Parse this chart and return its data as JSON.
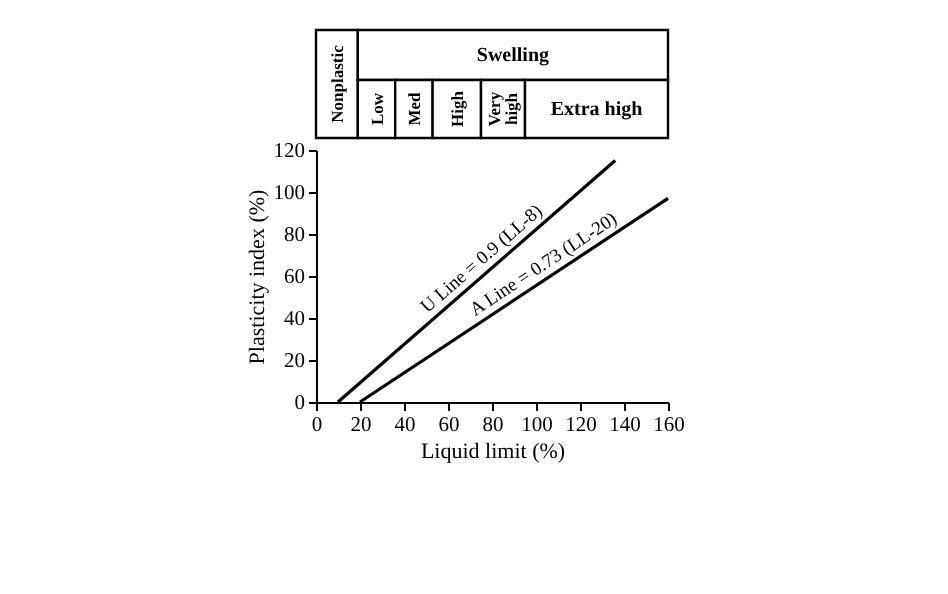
{
  "chart_data": {
    "type": "line",
    "xlabel": "Liquid limit (%)",
    "ylabel": "Plasticity index (%)",
    "series": [
      {
        "color": "#000000",
        "x": [
          10,
          136
        ],
        "values": [
          0,
          115
        ]
      },
      {
        "color": "#000000",
        "x": [
          20,
          160
        ],
        "values": [
          0,
          97
        ]
      }
    ],
    "xlim": [
      0,
      160
    ],
    "xticks": [
      0,
      20,
      40,
      60,
      80,
      100,
      120,
      140,
      160
    ],
    "ylim": [
      0,
      120
    ],
    "yticks": [
      0,
      20,
      40,
      60,
      80,
      100,
      120
    ],
    "grid": false,
    "marker": "none",
    "line_style": "solid",
    "annotations": [
      "Nonplastic",
      "Swelling",
      "Low",
      "Med",
      "High",
      "Very high",
      "Extra high",
      "U Line = 0.9 (LL-8)",
      "A Line = 0.73 (LL-20)"
    ]
  }
}
